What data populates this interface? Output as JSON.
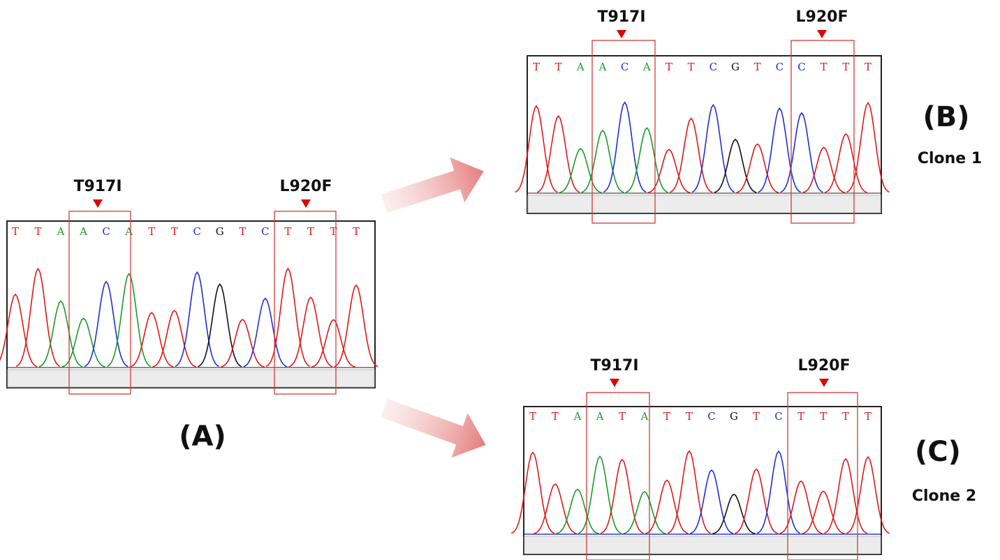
{
  "panels": [
    {
      "label": "(A)",
      "mutations": [
        "T917I",
        "L920F"
      ],
      "bases": [
        "T",
        "T",
        "A",
        "A",
        "C",
        "A",
        "T",
        "T",
        "C",
        "G",
        "T",
        "C",
        "T",
        "T",
        "T",
        "T"
      ]
    },
    {
      "label": "(B)",
      "clone": "Clone 1",
      "mutations": [
        "T917I",
        "L920F"
      ],
      "bases": [
        "T",
        "T",
        "A",
        "A",
        "C",
        "A",
        "T",
        "T",
        "C",
        "G",
        "T",
        "C",
        "C",
        "T",
        "T",
        "T"
      ]
    },
    {
      "label": "(C)",
      "clone": "Clone 2",
      "mutations": [
        "T917I",
        "L920F"
      ],
      "bases": [
        "T",
        "T",
        "A",
        "A",
        "T",
        "A",
        "T",
        "T",
        "C",
        "G",
        "T",
        "C",
        "T",
        "T",
        "T",
        "T"
      ]
    }
  ]
}
